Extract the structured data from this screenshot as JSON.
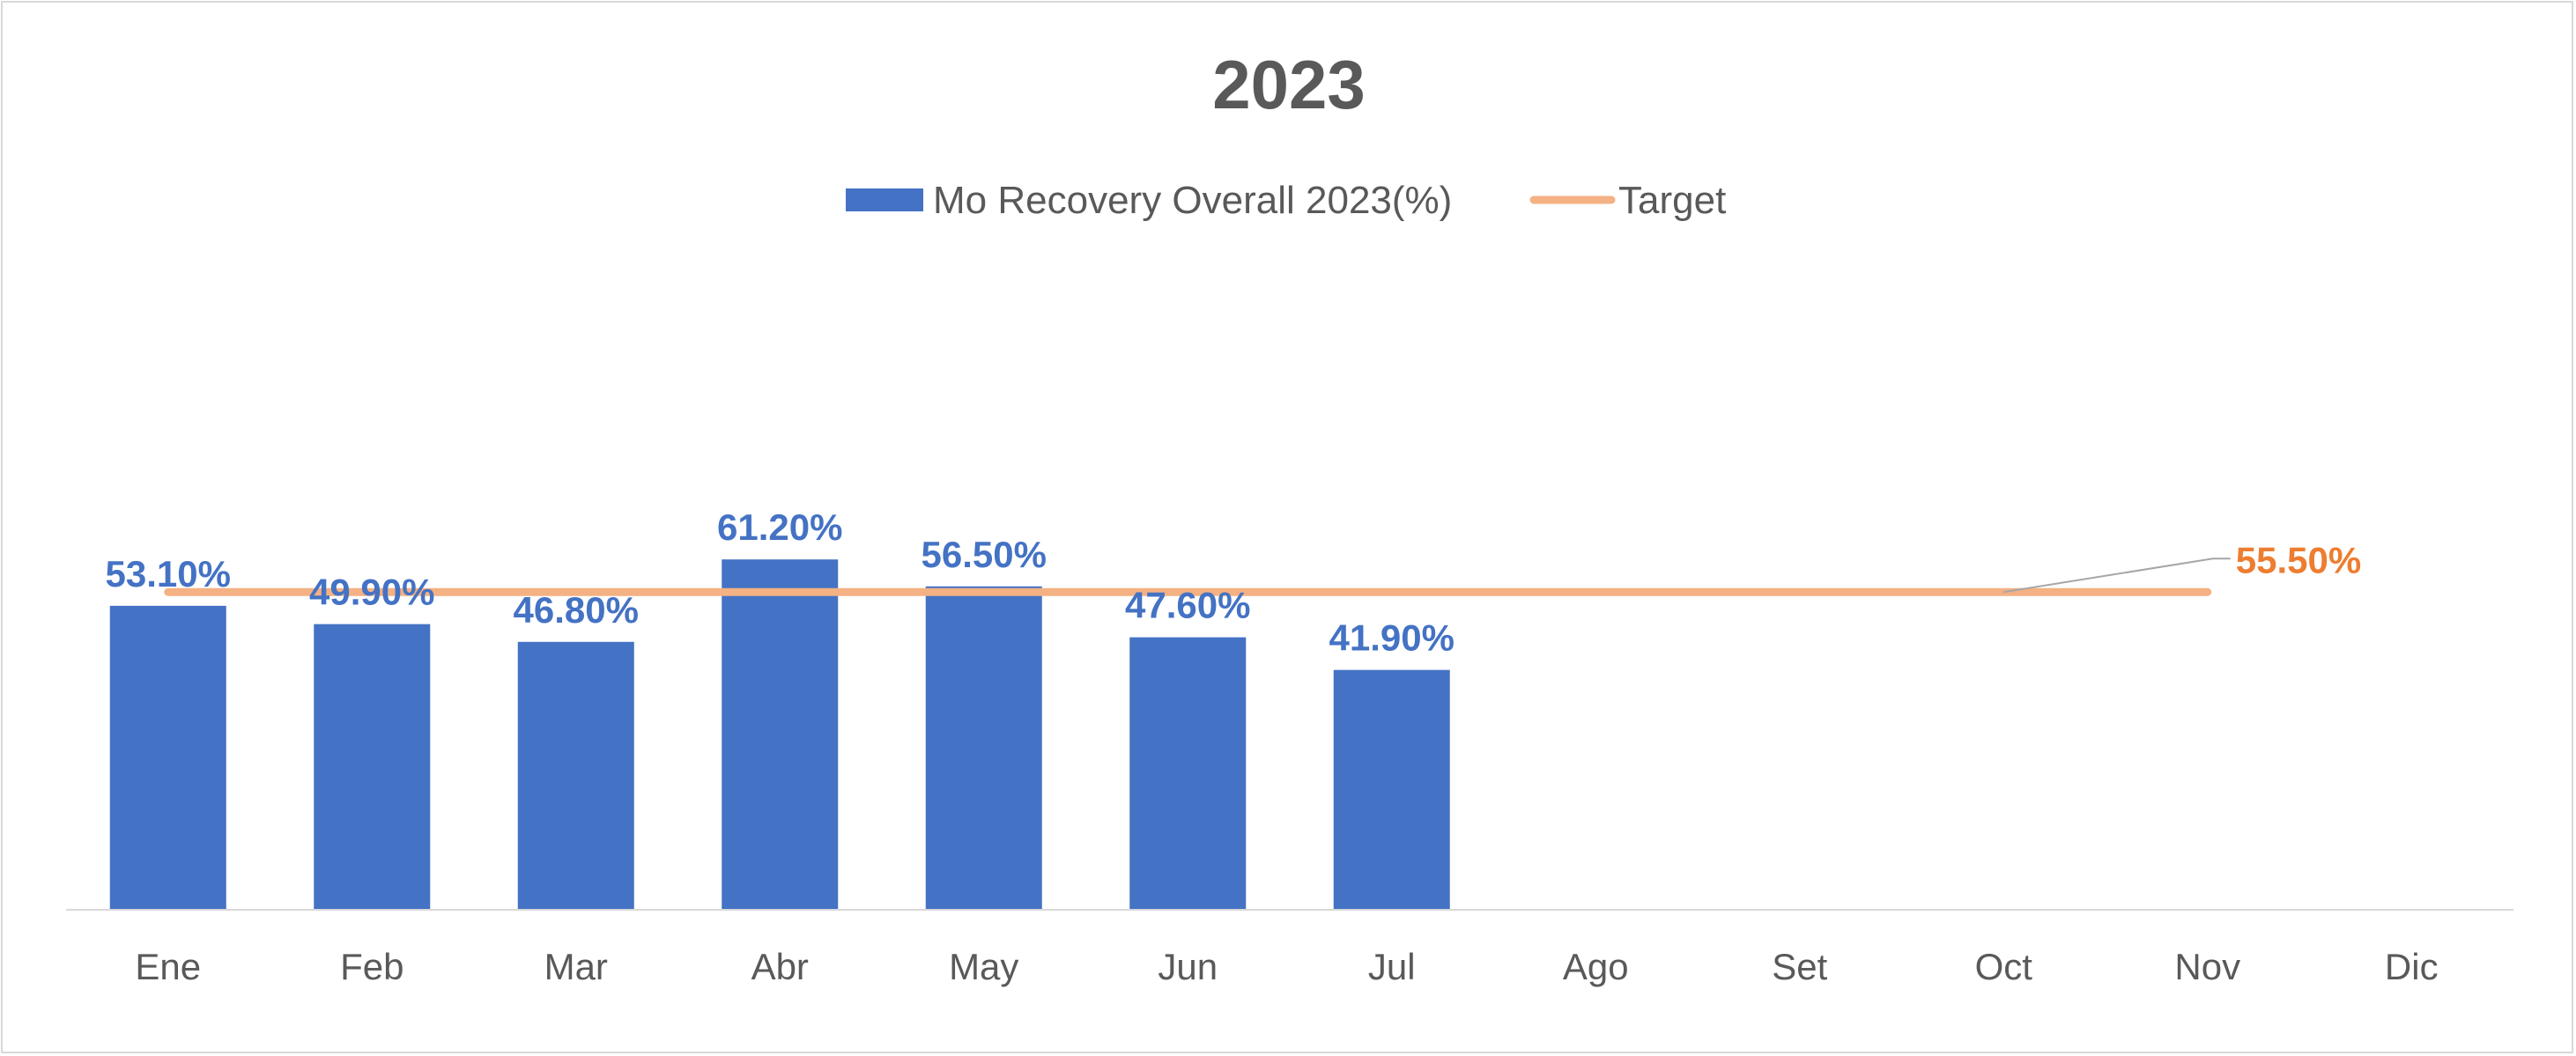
{
  "chart_data": {
    "type": "bar",
    "title": "2023",
    "categories": [
      "Ene",
      "Feb",
      "Mar",
      "Abr",
      "May",
      "Jun",
      "Jul",
      "Ago",
      "Set",
      "Oct",
      "Nov",
      "Dic"
    ],
    "series": [
      {
        "name": "Mo Recovery Overall 2023(%)",
        "type": "bar",
        "values": [
          53.1,
          49.9,
          46.8,
          61.2,
          56.5,
          47.6,
          41.9,
          null,
          null,
          null,
          null,
          null
        ],
        "labels": [
          "53.10%",
          "49.90%",
          "46.80%",
          "61.20%",
          "56.50%",
          "47.60%",
          "41.90%",
          "",
          "",
          "",
          "",
          ""
        ],
        "color": "#4472C4"
      },
      {
        "name": "Target",
        "type": "line",
        "value": 55.5,
        "label": "55.50%",
        "color": "#F4B183",
        "label_color": "#ED7D31"
      }
    ],
    "ylim": [
      0,
      65
    ],
    "grid": false,
    "legend_position": "top",
    "axis_line_color": "#d9d9d9"
  }
}
